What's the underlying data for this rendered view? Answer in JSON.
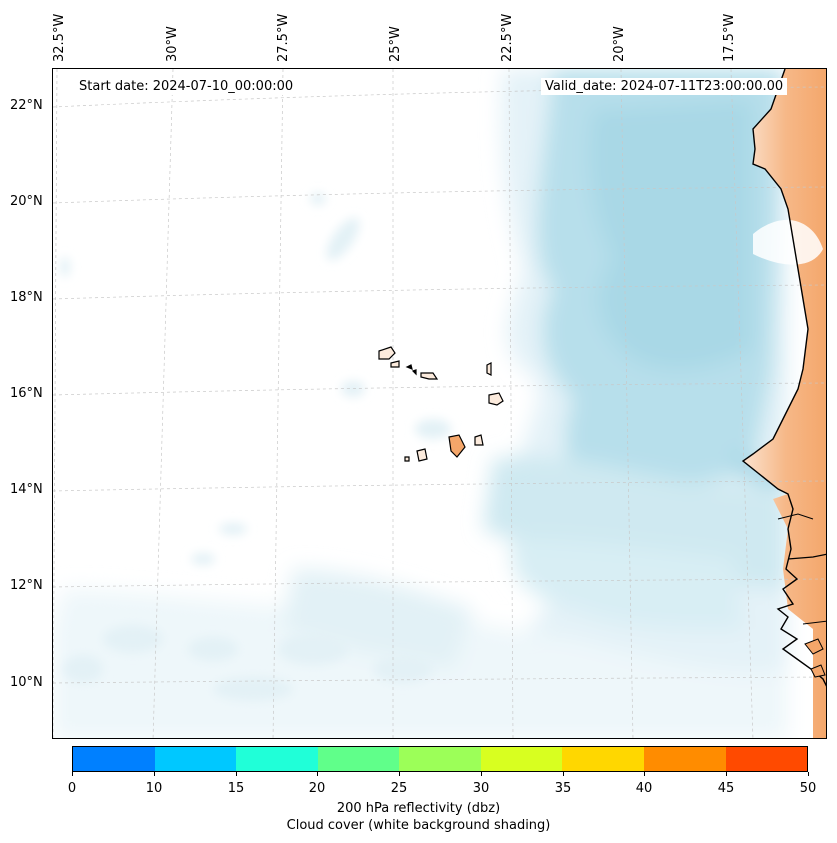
{
  "header": {
    "start_date": "Start date: 2024-07-10_00:00:00",
    "valid_date": "Valid_date: 2024-07-11T23:00:00.00"
  },
  "map": {
    "longitude_labels": [
      "32.5°W",
      "30°W",
      "27.5°W",
      "25°W",
      "22.5°W",
      "20°W",
      "17.5°W"
    ],
    "latitude_labels": [
      "22°N",
      "20°N",
      "18°N",
      "16°N",
      "14°N",
      "12°N",
      "10°N"
    ],
    "gridlines": "dashed light gray",
    "features": [
      "Cabo Verde islands",
      "West African coastline (Mauritania, Senegal, The Gambia, Guinea-Bissau)"
    ],
    "colors": {
      "cloud_cover": "#a9d8e6",
      "land_shading": "#f4a66a",
      "coastline": "#000000"
    }
  },
  "colorbar": {
    "ticks": [
      "0",
      "10",
      "15",
      "20",
      "25",
      "30",
      "35",
      "40",
      "45",
      "50"
    ],
    "colors": [
      "#0080ff",
      "#00c8ff",
      "#20ffd8",
      "#60ff8a",
      "#9cff58",
      "#d8ff20",
      "#ffd700",
      "#ff8c00",
      "#ff4a00"
    ],
    "label_line1": "200 hPa reflectivity (dbz)",
    "label_line2": "Cloud cover (white background shading)"
  }
}
